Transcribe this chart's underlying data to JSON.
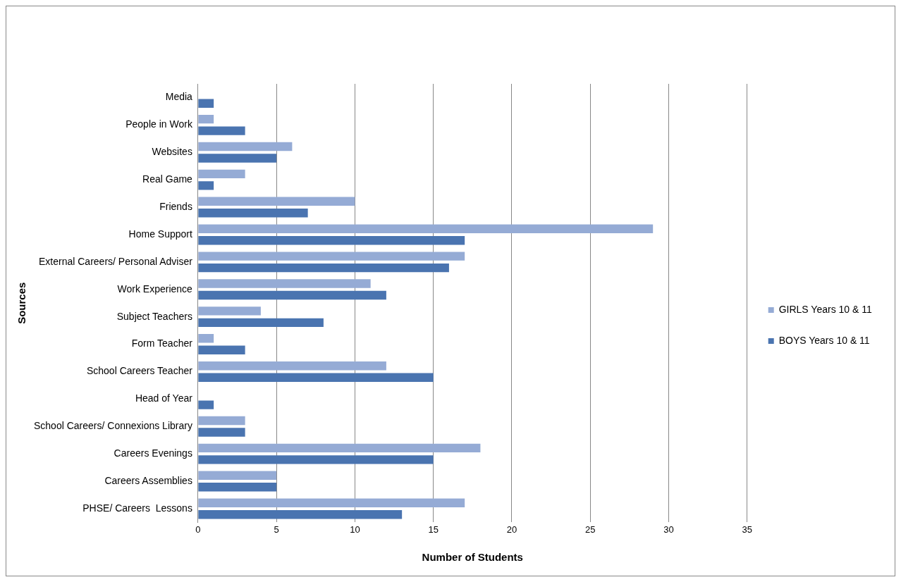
{
  "chart_data": {
    "type": "bar",
    "orientation": "horizontal",
    "xlabel": "Number of Students",
    "ylabel": "Sources",
    "categories": [
      "Media",
      "People in Work",
      "Websites",
      "Real Game",
      "Friends",
      "Home Support",
      "External Careers/ Personal Adviser",
      "Work Experience",
      "Subject Teachers",
      "Form Teacher",
      "School Careers Teacher",
      "Head of Year",
      "School Careers/ Connexions Library",
      "Careers Evenings",
      "Careers Assemblies",
      "PHSE/ Careers  Lessons"
    ],
    "series": [
      {
        "name": "GIRLS Years 10 & 11",
        "color": "#95abd5",
        "values": [
          0,
          1,
          6,
          3,
          10,
          29,
          17,
          11,
          4,
          1,
          12,
          0,
          3,
          18,
          5,
          17
        ]
      },
      {
        "name": "BOYS Years 10 & 11",
        "color": "#4a74b0",
        "values": [
          1,
          3,
          5,
          1,
          7,
          17,
          16,
          12,
          8,
          3,
          15,
          1,
          3,
          15,
          5,
          13
        ]
      }
    ],
    "xlim": [
      0,
      35
    ],
    "xticks": [
      0,
      5,
      10,
      15,
      20,
      25,
      30,
      35
    ],
    "grid": "x",
    "legend": "right"
  }
}
